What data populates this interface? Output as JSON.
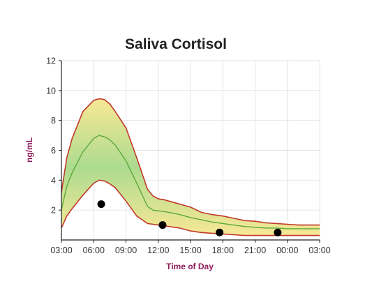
{
  "chart_data": {
    "type": "line",
    "title": "Saliva Cortisol",
    "xlabel": "Time of Day",
    "ylabel": "ng/mL",
    "x_ticks": [
      "03:00",
      "06:00",
      "09:00",
      "12:00",
      "15:00",
      "18:00",
      "21:00",
      "00:00",
      "03:00"
    ],
    "x_hours": [
      0,
      3,
      6,
      9,
      12,
      15,
      18,
      21,
      24
    ],
    "ylim": [
      0,
      12
    ],
    "yticks": [
      2,
      4,
      6,
      8,
      10,
      12
    ],
    "grid": true,
    "band": {
      "x": [
        0,
        0.5,
        1,
        2,
        3,
        3.5,
        4,
        4.5,
        5,
        6,
        7,
        8,
        8.5,
        9,
        9.5,
        10,
        11,
        12,
        13,
        14,
        15,
        16,
        17,
        18,
        19,
        20,
        21,
        22,
        23,
        24
      ],
      "upper": [
        3.2,
        5.5,
        6.8,
        8.6,
        9.35,
        9.45,
        9.4,
        9.1,
        8.6,
        7.5,
        5.5,
        3.4,
        2.95,
        2.75,
        2.7,
        2.6,
        2.4,
        2.2,
        1.85,
        1.7,
        1.6,
        1.45,
        1.3,
        1.25,
        1.15,
        1.1,
        1.05,
        1.0,
        1.0,
        1.0
      ],
      "median": [
        2.0,
        3.6,
        4.5,
        5.9,
        6.8,
        7.0,
        6.9,
        6.7,
        6.35,
        5.3,
        3.8,
        2.25,
        2.0,
        1.95,
        1.9,
        1.85,
        1.7,
        1.5,
        1.35,
        1.2,
        1.1,
        1.0,
        0.9,
        0.85,
        0.8,
        0.8,
        0.75,
        0.75,
        0.75,
        0.75
      ],
      "lower": [
        0.8,
        1.6,
        2.1,
        3.0,
        3.8,
        4.0,
        3.95,
        3.75,
        3.5,
        2.6,
        1.6,
        1.1,
        1.05,
        1.0,
        0.95,
        0.9,
        0.8,
        0.6,
        0.5,
        0.45,
        0.4,
        0.35,
        0.3,
        0.3,
        0.3,
        0.3,
        0.3,
        0.3,
        0.3,
        0.3
      ]
    },
    "measurements": [
      {
        "x": 3.7,
        "y": 2.4
      },
      {
        "x": 9.4,
        "y": 1.0
      },
      {
        "x": 14.7,
        "y": 0.5
      },
      {
        "x": 20.1,
        "y": 0.5
      }
    ],
    "colors": {
      "band_edge": "#c0392b",
      "median_line": "#5aaa3a",
      "band_center": "#a8d98a",
      "band_outer": "#f6e58a",
      "measurement": "#000000",
      "axis_label": "#8e1a5a",
      "grid": "#e4e4e4"
    }
  }
}
